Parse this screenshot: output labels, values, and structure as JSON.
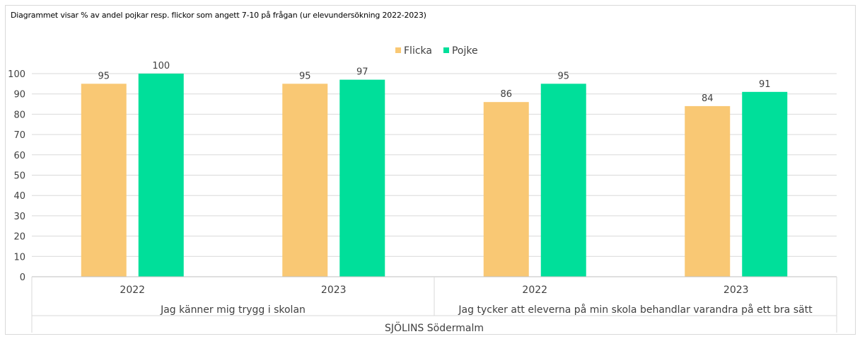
{
  "chart_data": {
    "type": "bar",
    "title": "Diagrammet visar % av andel pojkar resp. flickor som angett 7-10 på frågan (ur elevundersökning 2022-2023)",
    "ylim": [
      0,
      100
    ],
    "y_ticks": [
      "0",
      "10",
      "20",
      "30",
      "40",
      "50",
      "60",
      "70",
      "80",
      "90",
      "100"
    ],
    "grid": true,
    "legend_position": "top",
    "categories": [
      "2022",
      "2023",
      "2022",
      "2023"
    ],
    "groups": [
      "Jag känner mig trygg i skolan",
      "Jag tycker att eleverna på min skola behandlar varandra på ett bra sätt"
    ],
    "outer_group": "SJÖLINS Södermalm",
    "series": [
      {
        "name": "Flicka",
        "color": "#f9c874",
        "values": [
          95,
          95,
          86,
          84
        ]
      },
      {
        "name": "Pojke",
        "color": "#00df9a",
        "values": [
          100,
          97,
          95,
          91
        ]
      }
    ]
  }
}
